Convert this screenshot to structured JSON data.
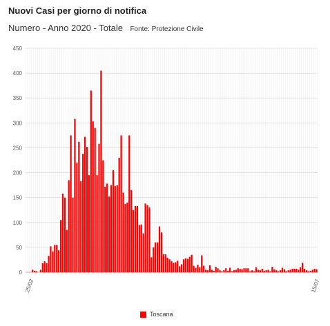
{
  "header": {
    "title": "Nuovi Casi per giorno di notifica",
    "subtitle": "Numero - Anno 2020 - Totale",
    "source": "Fonte: Protezione Civile"
  },
  "legend": {
    "label": "Toscana",
    "color": "#ff0000"
  },
  "chart_data": {
    "type": "bar",
    "title": "Nuovi Casi per giorno di notifica",
    "subtitle": "Numero - Anno 2020 - Totale",
    "ylim": [
      0,
      450
    ],
    "yticks": [
      0,
      50,
      100,
      150,
      200,
      250,
      300,
      350,
      400,
      450
    ],
    "xtick_labels": [
      {
        "index": 0,
        "label": "25/02"
      },
      {
        "index": 142,
        "label": "15/07"
      }
    ],
    "grid": true,
    "legend_position": "bottom-center",
    "series": [
      {
        "name": "Toscana",
        "color": "#ff0000",
        "values": [
          0,
          0,
          0,
          5,
          3,
          2,
          0,
          5,
          18,
          22,
          18,
          33,
          52,
          42,
          55,
          55,
          44,
          105,
          158,
          150,
          85,
          185,
          275,
          150,
          308,
          220,
          262,
          183,
          238,
          272,
          252,
          195,
          365,
          303,
          290,
          195,
          258,
          405,
          225,
          172,
          178,
          152,
          175,
          205,
          173,
          175,
          230,
          275,
          160,
          137,
          140,
          275,
          165,
          125,
          133,
          133,
          95,
          96,
          78,
          138,
          135,
          130,
          30,
          50,
          60,
          60,
          92,
          80,
          36,
          36,
          29,
          26,
          22,
          19,
          20,
          23,
          12,
          16,
          26,
          28,
          27,
          31,
          35,
          13,
          9,
          15,
          10,
          34,
          13,
          5,
          4,
          14,
          5,
          3,
          11,
          8,
          4,
          2,
          4,
          8,
          3,
          9,
          2,
          4,
          5,
          8,
          7,
          6,
          8,
          8,
          8,
          2,
          4,
          2,
          10,
          5,
          4,
          7,
          3,
          4,
          5,
          2,
          11,
          6,
          4,
          2,
          4,
          9,
          6,
          2,
          4,
          5,
          7,
          7,
          7,
          5,
          10,
          19,
          7,
          4,
          2,
          3,
          5,
          7,
          6
        ]
      }
    ]
  }
}
